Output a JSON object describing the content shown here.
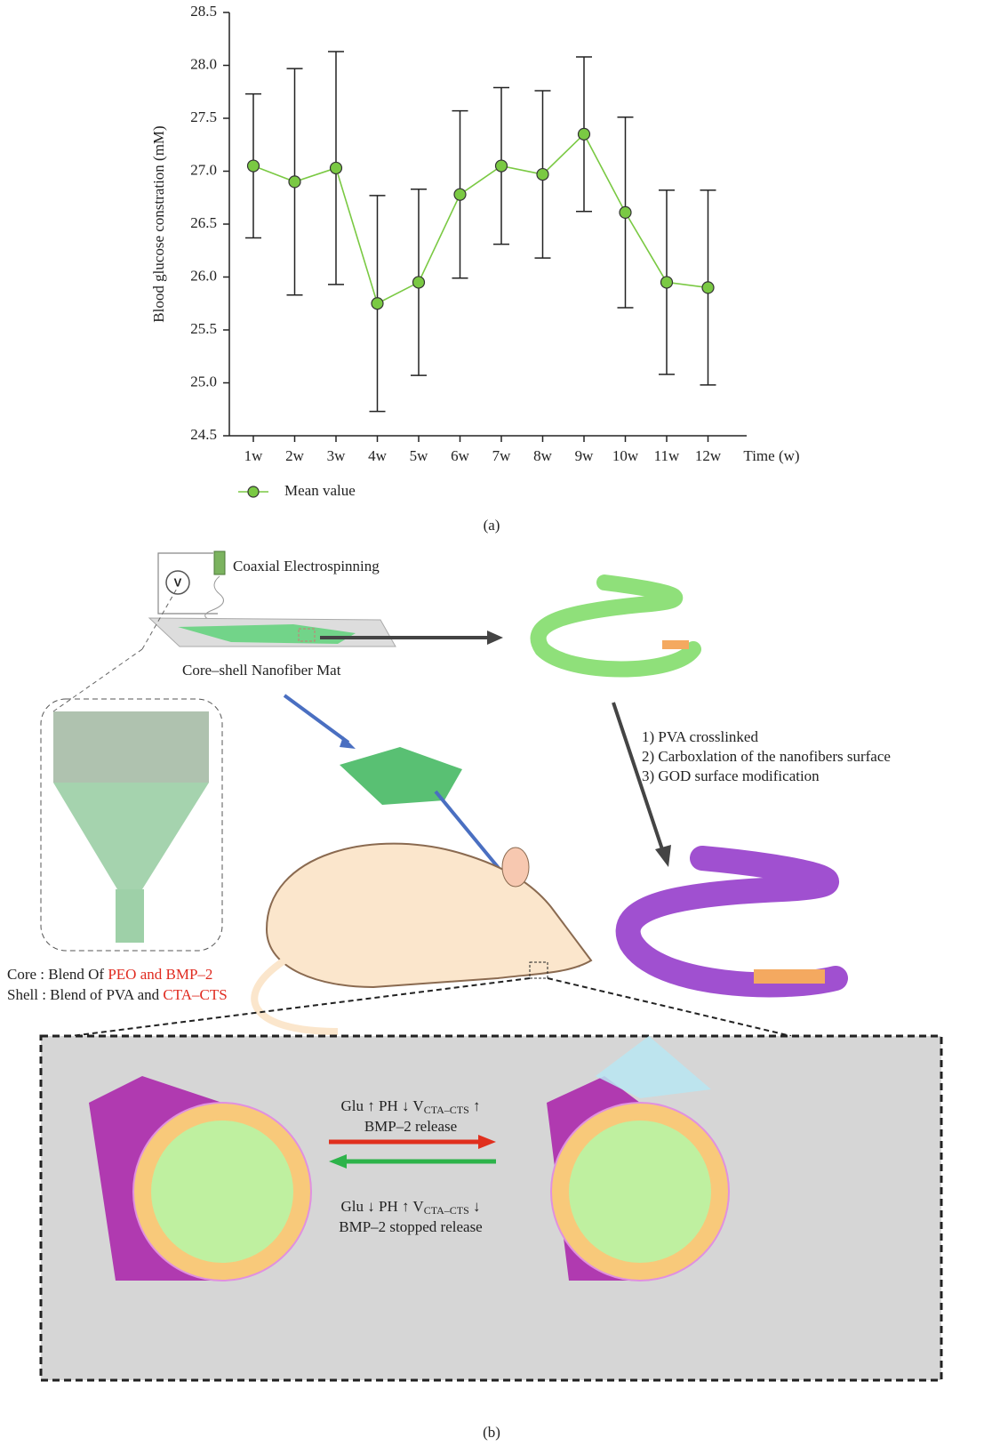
{
  "chart_data": {
    "type": "line",
    "y_label": "Blood glucose constration (mM)",
    "x_label": "Time (w)",
    "categories": [
      "1w",
      "2w",
      "3w",
      "4w",
      "5w",
      "6w",
      "7w",
      "8w",
      "9w",
      "10w",
      "11w",
      "12w"
    ],
    "series": [
      {
        "name": "Mean value",
        "color": "#7ac943",
        "values": [
          27.05,
          26.9,
          27.03,
          25.75,
          25.95,
          26.78,
          27.05,
          26.97,
          27.35,
          26.61,
          25.95,
          25.9
        ],
        "errors": [
          0.68,
          1.07,
          1.1,
          1.02,
          0.88,
          0.79,
          0.74,
          0.79,
          0.73,
          0.9,
          0.87,
          0.92
        ]
      }
    ],
    "ylim": [
      24.5,
      28.5
    ],
    "yticks": [
      24.5,
      {
        "value": 25,
        "label": "25.0"
      },
      25.5,
      {
        "value": 26,
        "label": "26.0"
      },
      26.5,
      {
        "value": 27,
        "label": "27.0"
      },
      27.5,
      {
        "value": 28,
        "label": "28.0"
      },
      28.5
    ],
    "panel": "(a)"
  },
  "diagram": {
    "coaxial": "Coaxial Electrospinning",
    "meter": "V",
    "mat": "Core–shell Nanofiber Mat",
    "steps": [
      "1) PVA crosslinked",
      "2) Carboxlation of the nanofibers surface",
      "3) GOD surface modification"
    ],
    "core": {
      "prefix": "Core : Blend Of ",
      "highlight": "PEO and BMP–2"
    },
    "shell": {
      "prefix": "Shell : Blend of PVA and ",
      "highlight": "CTA–CTS"
    },
    "forward": {
      "condition": "Glu ↑  PH ↓  V",
      "sub": "CTA–CTS",
      "arrow": " ↑",
      "result": "BMP–2 release"
    },
    "backward": {
      "condition": "Glu ↓  PH ↑  V",
      "sub": "CTA–CTS",
      "arrow": " ↓",
      "result": "BMP–2 stopped release"
    },
    "panel": "(b)"
  }
}
